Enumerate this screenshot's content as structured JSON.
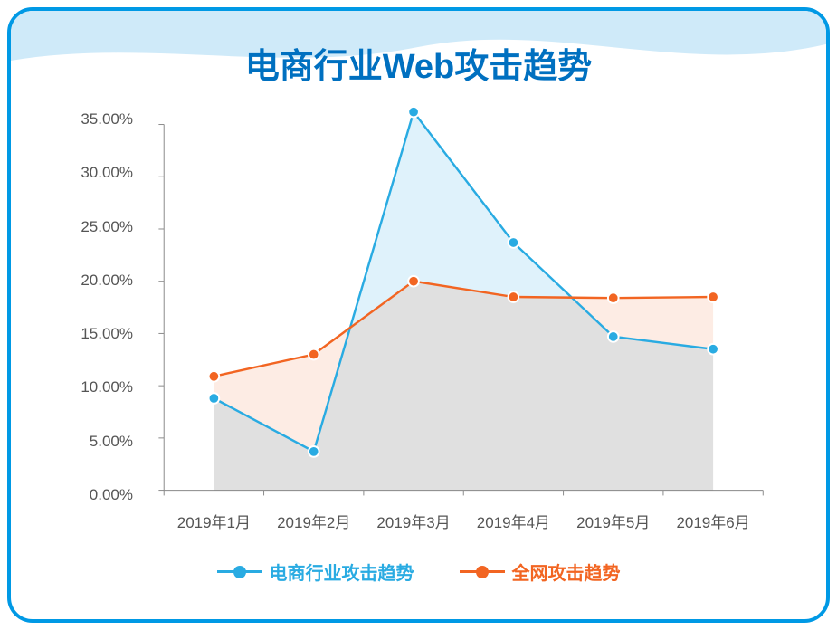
{
  "title": "电商行业Web攻击趋势",
  "title_color": "#0070c0",
  "card_border_color": "#0099e5",
  "wave_color": "#cfeaf9",
  "chart": {
    "type": "line-area",
    "categories": [
      "2019年1月",
      "2019年2月",
      "2019年3月",
      "2019年4月",
      "2019年5月",
      "2019年6月"
    ],
    "series": [
      {
        "name": "电商行业攻击趋势",
        "values": [
          8.8,
          3.7,
          36.2,
          23.7,
          14.7,
          13.5
        ],
        "line_color": "#29abe2",
        "marker_fill": "#29abe2",
        "marker_stroke": "#ffffff",
        "area_fill": "rgba(41,171,226,0.15)",
        "line_width": 2.5,
        "marker_radius": 6
      },
      {
        "name": "全网攻击趋势",
        "values": [
          10.9,
          13.0,
          20.0,
          18.5,
          18.4,
          18.5
        ],
        "line_color": "#f26522",
        "marker_fill": "#f26522",
        "marker_stroke": "#ffffff",
        "area_fill": "rgba(242,101,34,0.12)",
        "line_width": 2.5,
        "marker_radius": 6
      }
    ],
    "ylim": [
      0,
      35
    ],
    "ytick_step": 5,
    "ytick_format": "0.00%",
    "axis_label_color": "#555555",
    "axis_label_fontsize": 17,
    "gridline_color": "#cccccc",
    "axis_line_color": "#888888",
    "tick_length": 6,
    "legend_fontsize": 20,
    "legend_colors": [
      "#29abe2",
      "#f26522"
    ]
  }
}
